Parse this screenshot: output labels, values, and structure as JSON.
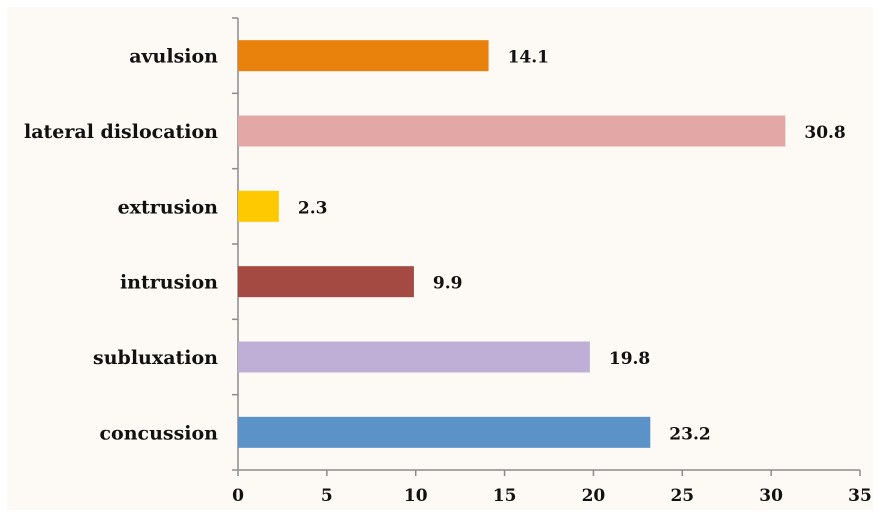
{
  "chart_data": {
    "type": "bar",
    "orientation": "horizontal",
    "categories": [
      "concussion",
      "subluxation",
      "intrusion",
      "extrusion",
      "lateral dislocation",
      "avulsion"
    ],
    "values": [
      23.2,
      19.8,
      9.9,
      2.3,
      30.8,
      14.1
    ],
    "value_labels": [
      "23.2",
      "19.8",
      "9.9",
      "2.3",
      "30.8",
      "14.1"
    ],
    "colors": [
      "#5b93c9",
      "#bfaed5",
      "#a54a42",
      "#ffc900",
      "#e3a8a6",
      "#e8820c"
    ],
    "title": "",
    "xlabel": "",
    "ylabel": "",
    "xlim": [
      0,
      35
    ],
    "xticks": [
      0,
      5,
      10,
      15,
      20,
      25,
      30,
      35
    ],
    "grid": false,
    "legend": "none"
  }
}
